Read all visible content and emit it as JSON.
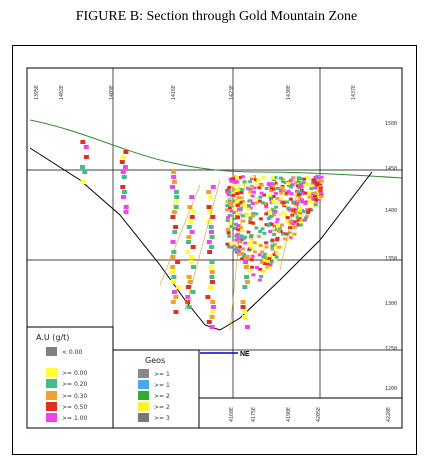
{
  "figure": {
    "title": "FIGURE B: Section through Gold Mountain Zone",
    "direction_label": "NE"
  },
  "colors": {
    "topo_line": "#2e8b2e",
    "section_line": "#0000cc",
    "frame": "#000000"
  },
  "legend_au": {
    "title": "A.U (g/t)",
    "items": [
      {
        "label": "< 0.00",
        "color": "#808080"
      },
      {
        "label": ">= 0.00",
        "color": "#ffff33"
      },
      {
        "label": ">= 0.20",
        "color": "#44bb88"
      },
      {
        "label": ">= 0.30",
        "color": "#f0a030"
      },
      {
        "label": ">= 0.50",
        "color": "#e03020"
      },
      {
        "label": ">= 1.00",
        "color": "#ee44ee"
      }
    ]
  },
  "legend_geo": {
    "title": "Geos",
    "items": [
      {
        "label": ">= 1",
        "color": "#888888"
      },
      {
        "label": ">= 1",
        "color": "#44aaee"
      },
      {
        "label": ">= 2",
        "color": "#33aa33"
      },
      {
        "label": ">= 2",
        "color": "#ffee33"
      },
      {
        "label": ">= 3",
        "color": "#777777"
      }
    ]
  },
  "axis_labels": {
    "top": [
      "1395E",
      "1402E",
      "1409E",
      "1416E",
      "1423E",
      "1430E",
      "1437E"
    ],
    "bottom": [
      "4160E",
      "4175E",
      "4190E",
      "4205E",
      "4220E"
    ],
    "right": [
      "1500",
      "1450",
      "1400",
      "1350",
      "1300",
      "1250",
      "1200"
    ]
  }
}
